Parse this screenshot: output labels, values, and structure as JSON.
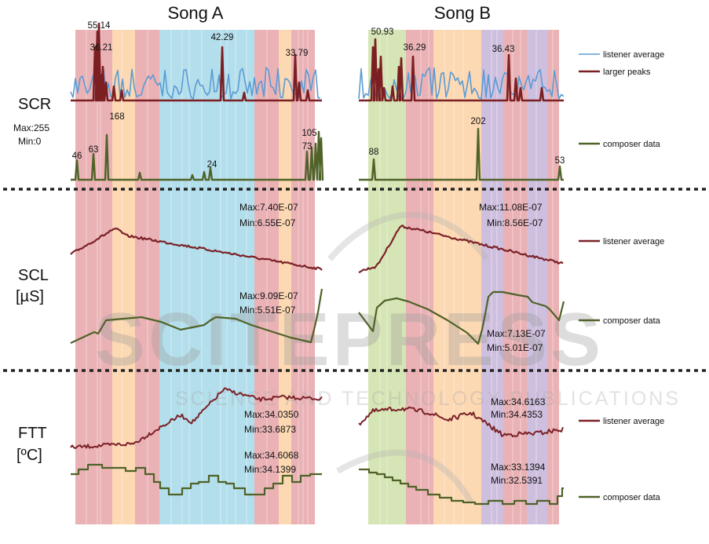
{
  "titles": {
    "song_a": "Song A",
    "song_b": "Song B"
  },
  "row_labels": {
    "scr": "SCR",
    "scr_range_max": "Max:255",
    "scr_range_min": "Min:0",
    "scl": "SCL",
    "scl_unit": "[µS]",
    "ftt": "FTT",
    "ftt_unit": "[ºC]"
  },
  "legend": {
    "listener_average": "listener average",
    "larger_peaks": "larger peaks",
    "composer_data": "composer data"
  },
  "watermark": {
    "main": "SCITEPRESS",
    "sub": "SCIENCE AND TECHNOLOGY PUBLICATIONS"
  },
  "colors": {
    "listener_scr": "#5b9bd5",
    "larger_peaks": "#7b1f22",
    "listener_avg": "#7b2228",
    "composer": "#4f6228",
    "section_red": "#e6a5a8",
    "section_orange": "#fbd1a6",
    "section_blue": "#a6d8e8",
    "section_green": "#cfe1a8",
    "section_purple": "#c6b4d8",
    "separator": "#222222"
  },
  "chart_data": [
    {
      "type": "line",
      "song": "Song A",
      "row": "SCR",
      "series": [
        {
          "name": "listener average",
          "values": []
        },
        {
          "name": "larger peaks",
          "peak_labels": [
            "55.14",
            "36.21",
            "42.29",
            "33.79"
          ],
          "values": [
            55.14,
            36.21,
            42.29,
            33.79
          ]
        },
        {
          "name": "composer data",
          "peak_labels": [
            "46",
            "63",
            "168",
            "24",
            "105",
            "73"
          ],
          "values": [
            46,
            63,
            168,
            24,
            105,
            73
          ]
        }
      ],
      "ylim": [
        0,
        255
      ]
    },
    {
      "type": "line",
      "song": "Song B",
      "row": "SCR",
      "series": [
        {
          "name": "listener average",
          "values": []
        },
        {
          "name": "larger peaks",
          "peak_labels": [
            "50.93",
            "36.29",
            "36.43"
          ],
          "values": [
            50.93,
            36.29,
            36.43
          ]
        },
        {
          "name": "composer data",
          "peak_labels": [
            "88",
            "202",
            "53"
          ],
          "values": [
            88,
            202,
            53
          ]
        }
      ],
      "ylim": [
        0,
        255
      ]
    },
    {
      "type": "line",
      "song": "Song A",
      "row": "SCL",
      "ylabel": "[µS]",
      "series": [
        {
          "name": "listener average",
          "max": "Max:7.40E-07",
          "min": "Min:6.55E-07"
        },
        {
          "name": "composer data",
          "max": "Max:9.09E-07",
          "min": "Min:5.51E-07"
        }
      ]
    },
    {
      "type": "line",
      "song": "Song B",
      "row": "SCL",
      "ylabel": "[µS]",
      "series": [
        {
          "name": "listener average",
          "max": "Max:11.08E-07",
          "min": "Min:8.56E-07"
        },
        {
          "name": "composer data",
          "max": "Max:7.13E-07",
          "min": "Min:5.01E-07"
        }
      ]
    },
    {
      "type": "line",
      "song": "Song A",
      "row": "FTT",
      "ylabel": "[ºC]",
      "series": [
        {
          "name": "listener average",
          "max": "Max:34.0350",
          "min": "Min:33.6873"
        },
        {
          "name": "composer data",
          "max": "Max:34.6068",
          "min": "Min:34.1399"
        }
      ]
    },
    {
      "type": "line",
      "song": "Song B",
      "row": "FTT",
      "ylabel": "[ºC]",
      "series": [
        {
          "name": "listener average",
          "max": "Max:34.6163",
          "min": "Min:34.4353"
        },
        {
          "name": "composer data",
          "max": "Max:33.1394",
          "min": "Min:32.5391"
        }
      ]
    }
  ]
}
